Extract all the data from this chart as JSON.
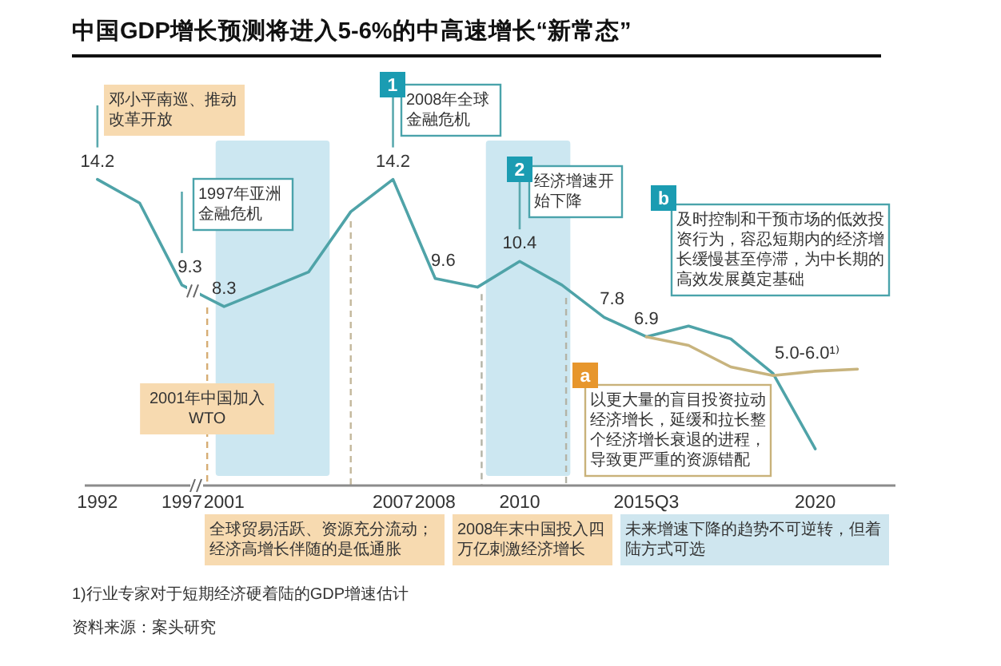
{
  "chart_data": {
    "type": "line",
    "title": "中国GDP增长预测将进入5-6%的中高速增长“新常态”",
    "categories": [
      "1992",
      null,
      "1997",
      "2001",
      null,
      null,
      null,
      "2007",
      "2008",
      null,
      "2010",
      null,
      null,
      "2015Q3",
      null,
      null,
      null,
      "2020",
      null
    ],
    "tick_labels": "x",
    "series": [
      {
        "color": "#4fa3a8",
        "values": [
          14.2,
          13.1,
          9.3,
          8.3,
          9.1,
          9.9,
          12.7,
          14.2,
          9.6,
          9.2,
          10.4,
          9.3,
          7.8,
          6.9,
          7.4,
          6.8,
          5.2,
          1.7,
          null
        ],
        "value_labels": [
          "14.2",
          null,
          "9.3",
          "8.3",
          null,
          null,
          null,
          "14.2",
          "9.6",
          null,
          "10.4",
          null,
          "7.8",
          "6.9",
          null,
          null,
          null,
          null,
          null
        ]
      },
      {
        "color": "#c8b47e",
        "values": [
          null,
          null,
          null,
          null,
          null,
          null,
          null,
          null,
          null,
          null,
          null,
          null,
          null,
          6.9,
          6.5,
          5.5,
          5.1,
          5.3,
          5.4
        ],
        "value_labels": [
          null,
          null,
          null,
          null,
          null,
          null,
          null,
          null,
          null,
          null,
          null,
          null,
          null,
          null,
          null,
          null,
          null,
          "5.0-6.0¹⁾",
          null
        ]
      }
    ],
    "annotations": [
      "邓小平南巡、推动改革开放",
      "1997年亚洲金融危机",
      "1",
      "2008年全球金融危机",
      "2",
      "经济增速开始下降",
      "b",
      "及时控制和干预市场的低效投资行为，容忍短期内的经济增长缓慢甚至停滞，为中长期的高效发展奠定基础",
      "a",
      "以更大量的盲目投资拉动经济增长，延缓和拉长整个经济增长衰退的进程，导致更严重的资源错配",
      "2001年中国加入WTO",
      "全球贸易活跃、资源充分流动；经济高增长伴随的是低通胀",
      "2008年末中国投入四万亿刺激经济增长",
      "未来增速下降的趋势不可逆转，但着陆方式可选",
      "1)行业专家对于短期经济硬着陆的GDP增速估计",
      "资料来源：案头研究"
    ]
  }
}
